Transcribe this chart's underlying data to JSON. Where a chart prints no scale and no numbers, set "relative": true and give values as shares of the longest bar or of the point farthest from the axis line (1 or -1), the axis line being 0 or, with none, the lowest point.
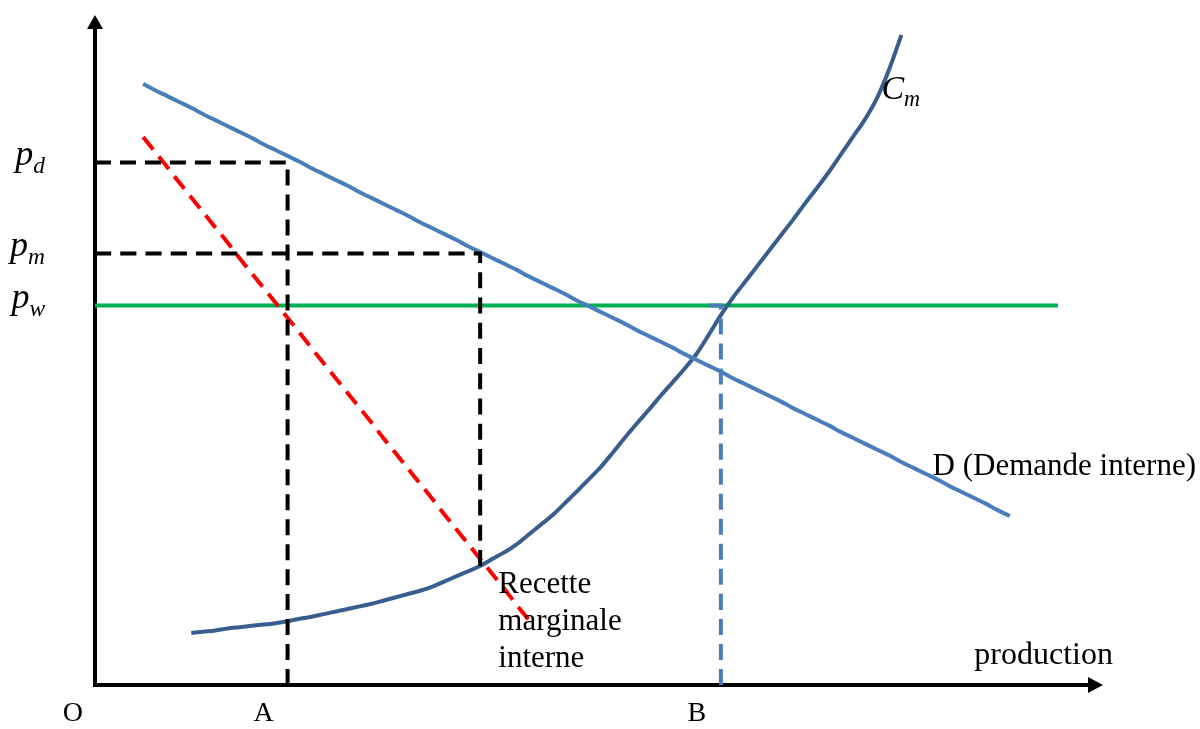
{
  "chart_data": {
    "type": "line",
    "relative": true,
    "xlabel": "production",
    "annotations": [
      "O"
    ],
    "tick_labels": "x",
    "categories": [
      null,
      null,
      null,
      null,
      null,
      null,
      null,
      null,
      null,
      null,
      null,
      null,
      null,
      null,
      "A",
      null,
      null,
      null,
      null,
      null,
      null,
      null,
      null,
      null,
      null,
      null,
      null,
      null,
      null,
      null,
      null,
      null,
      null,
      null,
      null,
      null,
      null,
      null,
      null,
      null,
      null,
      null,
      null,
      null,
      null,
      null,
      null,
      null,
      null,
      null,
      "B",
      null,
      null,
      null,
      null,
      null,
      null,
      null,
      null,
      null,
      null,
      null,
      null,
      null,
      null,
      null,
      null,
      null,
      null,
      null,
      null,
      null,
      null,
      null,
      null,
      null,
      null,
      null,
      null,
      null,
      null,
      null,
      null,
      null
    ],
    "series": [
      {
        "name": "D (Demande interne)",
        "color": "#4a7ebb",
        "values": [
          null,
          null,
          null,
          null,
          0.925,
          0.915,
          0.906,
          0.897,
          0.888,
          0.878,
          0.869,
          0.86,
          0.851,
          0.842,
          0.832,
          0.823,
          0.814,
          0.805,
          0.795,
          0.786,
          0.777,
          0.768,
          0.758,
          0.749,
          0.74,
          0.731,
          0.722,
          0.712,
          0.703,
          0.694,
          0.685,
          0.675,
          0.666,
          0.657,
          0.648,
          0.639,
          0.629,
          0.62,
          0.611,
          0.602,
          0.592,
          0.583,
          0.574,
          0.565,
          0.556,
          0.546,
          0.537,
          0.528,
          0.519,
          0.509,
          0.5,
          0.491,
          0.482,
          0.472,
          0.463,
          0.454,
          0.445,
          0.436,
          0.426,
          0.417,
          0.408,
          0.399,
          0.389,
          0.38,
          0.371,
          0.362,
          0.353,
          0.343,
          0.334,
          0.325,
          0.316,
          0.306,
          0.297,
          0.288,
          0.279,
          0.269,
          0.26,
          null,
          null,
          null,
          null,
          null,
          null,
          null
        ]
      },
      {
        "name": "Recette marginale interne",
        "color": "#ff0000",
        "line_style": "dashed",
        "values": [
          null,
          null,
          null,
          null,
          0.843,
          0.82,
          0.797,
          0.773,
          0.75,
          0.727,
          0.704,
          0.681,
          0.657,
          0.634,
          0.611,
          0.588,
          0.565,
          0.542,
          0.518,
          0.495,
          0.472,
          0.449,
          0.426,
          0.403,
          0.379,
          0.356,
          0.333,
          0.31,
          0.287,
          0.263,
          0.24,
          0.217,
          0.194,
          0.171,
          0.148,
          0.124,
          0.101,
          null,
          null,
          null,
          null,
          null,
          null,
          null,
          null,
          null,
          null,
          null,
          null,
          null,
          null,
          null,
          null,
          null,
          null,
          null,
          null,
          null,
          null,
          null,
          null,
          null,
          null,
          null,
          null,
          null,
          null,
          null,
          null,
          null,
          null,
          null,
          null,
          null,
          null,
          null,
          null,
          null,
          null,
          null,
          null,
          null,
          null,
          null
        ]
      },
      {
        "name": "C$_{m}$",
        "color": "#395e8d",
        "values": [
          null,
          null,
          null,
          null,
          null,
          null,
          null,
          null,
          0.08,
          0.082,
          0.084,
          0.087,
          0.089,
          0.091,
          0.093,
          0.095,
          0.098,
          0.102,
          0.105,
          0.109,
          0.113,
          0.117,
          0.121,
          0.125,
          0.13,
          0.135,
          0.14,
          0.145,
          0.151,
          0.159,
          0.167,
          0.175,
          0.183,
          0.194,
          0.204,
          0.216,
          0.231,
          0.246,
          0.261,
          0.279,
          0.297,
          0.316,
          0.335,
          0.357,
          0.38,
          0.402,
          0.423,
          0.445,
          0.466,
          0.487,
          0.51,
          0.539,
          0.569,
          0.596,
          0.62,
          0.644,
          0.668,
          0.692,
          0.716,
          0.741,
          0.765,
          0.79,
          0.817,
          0.844,
          0.871,
          0.904,
          0.948,
          1,
          null,
          null,
          null,
          null,
          null,
          null,
          null,
          null,
          null,
          null,
          null,
          null,
          null,
          null,
          null,
          null
        ]
      },
      {
        "name": "p$_{w}$",
        "color": "#00b050",
        "values": [
          0.584,
          0.584,
          0.584,
          0.584,
          0.584,
          0.584,
          0.584,
          0.584,
          0.584,
          0.584,
          0.584,
          0.584,
          0.584,
          0.584,
          0.584,
          0.584,
          0.584,
          0.584,
          0.584,
          0.584,
          0.584,
          0.584,
          0.584,
          0.584,
          0.584,
          0.584,
          0.584,
          0.584,
          0.584,
          0.584,
          0.584,
          0.584,
          0.584,
          0.584,
          0.584,
          0.584,
          0.584,
          0.584,
          0.584,
          0.584,
          0.584,
          0.584,
          0.584,
          0.584,
          0.584,
          0.584,
          0.584,
          0.584,
          0.584,
          0.584,
          0.584,
          0.584,
          0.584,
          0.584,
          0.584,
          0.584,
          0.584,
          0.584,
          0.584,
          0.584,
          0.584,
          0.584,
          0.584,
          0.584,
          0.584,
          0.584,
          0.584,
          0.584,
          0.584,
          0.584,
          0.584,
          0.584,
          0.584,
          0.584,
          0.584,
          0.584,
          0.584,
          0.584,
          0.584,
          0.584,
          0.584,
          null,
          null,
          null
        ]
      },
      {
        "name": "p$_{d}$",
        "type": "step",
        "color": "#000000",
        "line_style": "dashed",
        "values": [
          0.804,
          0.804,
          0.804,
          0.804,
          0.804,
          0.804,
          0.804,
          0.804,
          0.804,
          0.804,
          0.804,
          0.804,
          0.804,
          0.804,
          0.804,
          0.804,
          0,
          null,
          null,
          null,
          null,
          null,
          null,
          null,
          null,
          null,
          null,
          null,
          null,
          null,
          null,
          null,
          null,
          null,
          null,
          null,
          null,
          null,
          null,
          null,
          null,
          null,
          null,
          null,
          null,
          null,
          null,
          null,
          null,
          null,
          null,
          null,
          null,
          null,
          null,
          null,
          null,
          null,
          null,
          null,
          null,
          null,
          null,
          null,
          null,
          null,
          null,
          null,
          null,
          null,
          null,
          null,
          null,
          null,
          null,
          null,
          null,
          null,
          null,
          null,
          null,
          null,
          null,
          null
        ]
      },
      {
        "name": "p$_{m}$",
        "type": "step",
        "color": "#000000",
        "line_style": "dashed",
        "values": [
          0.664,
          0.664,
          0.664,
          0.664,
          0.664,
          0.664,
          0.664,
          0.664,
          0.664,
          0.664,
          0.664,
          0.664,
          0.664,
          0.664,
          0.664,
          0.664,
          0.664,
          0.664,
          0.664,
          0.664,
          0.664,
          0.664,
          0.664,
          0.664,
          0.664,
          0.664,
          0.664,
          0.664,
          0.664,
          0.664,
          0.664,
          0.664,
          0.183,
          null,
          null,
          null,
          null,
          null,
          null,
          null,
          null,
          null,
          null,
          null,
          null,
          null,
          null,
          null,
          null,
          null,
          null,
          null,
          null,
          null,
          null,
          null,
          null,
          null,
          null,
          null,
          null,
          null,
          null,
          null,
          null,
          null,
          null,
          null,
          null,
          null,
          null,
          null,
          null,
          null,
          null,
          null,
          null,
          null,
          null,
          null,
          null,
          null,
          null,
          null
        ]
      },
      {
        "type": "step",
        "color": "#4a7ebb",
        "line_style": "dashed",
        "values": [
          null,
          null,
          null,
          null,
          null,
          null,
          null,
          null,
          null,
          null,
          null,
          null,
          null,
          null,
          null,
          null,
          null,
          null,
          null,
          null,
          null,
          null,
          null,
          null,
          null,
          null,
          null,
          null,
          null,
          null,
          null,
          null,
          null,
          null,
          null,
          null,
          null,
          null,
          null,
          null,
          null,
          null,
          null,
          null,
          null,
          null,
          null,
          null,
          null,
          null,
          null,
          0.584,
          0,
          null,
          null,
          null,
          null,
          null,
          null,
          null,
          null,
          null,
          null,
          null,
          null,
          null,
          null,
          null,
          null,
          null,
          null,
          null,
          null,
          null,
          null,
          null,
          null,
          null,
          null,
          null,
          null,
          null,
          null,
          null
        ]
      }
    ]
  }
}
